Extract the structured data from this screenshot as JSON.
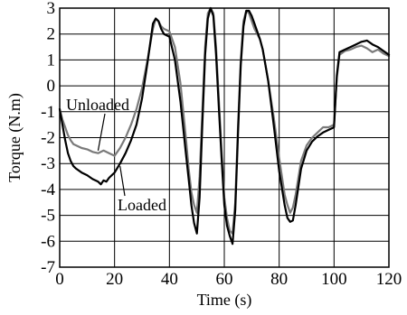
{
  "chart_data": {
    "type": "line",
    "title": "",
    "xlabel": "Time (s)",
    "ylabel": "Torque (N.m)",
    "xlim": [
      0,
      120
    ],
    "ylim": [
      -7,
      3
    ],
    "xticks": [
      0,
      20,
      40,
      60,
      80,
      100,
      120
    ],
    "yticks": [
      -7,
      -6,
      -5,
      -4,
      -3,
      -2,
      -1,
      0,
      1,
      2,
      3
    ],
    "grid": true,
    "legend": "none",
    "annotations": [
      {
        "text": "Unloaded",
        "target_series": "Unloaded",
        "x": 14,
        "y": -2.5
      },
      {
        "text": "Loaded",
        "target_series": "Loaded",
        "x": 22,
        "y": -3.1
      }
    ],
    "series": [
      {
        "name": "Unloaded",
        "color": "#7a7a7a",
        "x": [
          0,
          1,
          2,
          3,
          4,
          5,
          6,
          8,
          10,
          12,
          14,
          16,
          18,
          20,
          22,
          24,
          26,
          28,
          30,
          32,
          34,
          35,
          36,
          37,
          38,
          40,
          42,
          44,
          46,
          47,
          48,
          49,
          50,
          51,
          52,
          53,
          54,
          55,
          56,
          57,
          58,
          59,
          60,
          61,
          62,
          63,
          64,
          65,
          66,
          67,
          68,
          69,
          70,
          71,
          72,
          73,
          74,
          75,
          76,
          78,
          80,
          82,
          83,
          84,
          85,
          86,
          88,
          90,
          92,
          94,
          96,
          98,
          99,
          100,
          101,
          102,
          104,
          106,
          108,
          110,
          112,
          114,
          116,
          118,
          120
        ],
        "y": [
          -0.9,
          -1.3,
          -1.6,
          -1.9,
          -2.1,
          -2.25,
          -2.3,
          -2.4,
          -2.45,
          -2.55,
          -2.6,
          -2.5,
          -2.6,
          -2.7,
          -2.4,
          -2.0,
          -1.5,
          -0.9,
          -0.1,
          1.0,
          2.2,
          2.6,
          2.5,
          2.3,
          2.2,
          2.1,
          1.5,
          0.1,
          -2.0,
          -3.2,
          -4.1,
          -4.6,
          -4.9,
          -3.5,
          -1.0,
          1.5,
          2.8,
          3.0,
          2.8,
          1.5,
          -0.5,
          -2.5,
          -4.3,
          -5.1,
          -5.6,
          -5.7,
          -4.5,
          -1.5,
          1.0,
          2.5,
          2.9,
          2.8,
          2.5,
          2.2,
          2.0,
          1.8,
          1.4,
          0.8,
          0.2,
          -1.2,
          -2.8,
          -4.2,
          -4.6,
          -4.9,
          -4.7,
          -4.2,
          -2.9,
          -2.3,
          -2.0,
          -1.8,
          -1.6,
          -1.6,
          -1.55,
          -1.5,
          0.3,
          1.2,
          1.35,
          1.4,
          1.5,
          1.55,
          1.45,
          1.3,
          1.4,
          1.25,
          1.15
        ]
      },
      {
        "name": "Loaded",
        "color": "#000000",
        "x": [
          0,
          1,
          2,
          3,
          4,
          5,
          6,
          8,
          10,
          12,
          14,
          15,
          16,
          17,
          18,
          20,
          22,
          24,
          26,
          28,
          30,
          32,
          34,
          35,
          36,
          37,
          38,
          40,
          42,
          44,
          46,
          47,
          48,
          49,
          50,
          51,
          52,
          53,
          54,
          55,
          56,
          57,
          58,
          59,
          60,
          61,
          62,
          63,
          64,
          65,
          66,
          67,
          68,
          69,
          70,
          71,
          72,
          73,
          74,
          75,
          76,
          78,
          80,
          82,
          83,
          84,
          85,
          86,
          88,
          90,
          92,
          94,
          96,
          98,
          99,
          100,
          101,
          102,
          104,
          106,
          108,
          110,
          112,
          114,
          116,
          118,
          120
        ],
        "y": [
          -0.9,
          -1.5,
          -2.1,
          -2.6,
          -2.9,
          -3.1,
          -3.2,
          -3.35,
          -3.45,
          -3.6,
          -3.7,
          -3.8,
          -3.65,
          -3.7,
          -3.55,
          -3.35,
          -3.0,
          -2.6,
          -2.1,
          -1.5,
          -0.5,
          0.9,
          2.4,
          2.6,
          2.5,
          2.2,
          2.0,
          1.9,
          1.0,
          -0.6,
          -2.6,
          -3.6,
          -4.6,
          -5.3,
          -5.7,
          -4.3,
          -1.5,
          1.2,
          2.6,
          3.0,
          2.7,
          1.2,
          -0.8,
          -2.8,
          -4.6,
          -5.4,
          -5.8,
          -6.1,
          -4.8,
          -1.8,
          0.8,
          2.3,
          2.9,
          2.9,
          2.7,
          2.4,
          2.1,
          1.8,
          1.4,
          0.8,
          0.2,
          -1.5,
          -3.3,
          -4.6,
          -5.1,
          -5.25,
          -5.2,
          -4.6,
          -3.2,
          -2.5,
          -2.15,
          -1.95,
          -1.8,
          -1.7,
          -1.65,
          -1.6,
          0.4,
          1.3,
          1.4,
          1.5,
          1.6,
          1.7,
          1.75,
          1.6,
          1.5,
          1.35,
          1.2
        ]
      }
    ]
  }
}
